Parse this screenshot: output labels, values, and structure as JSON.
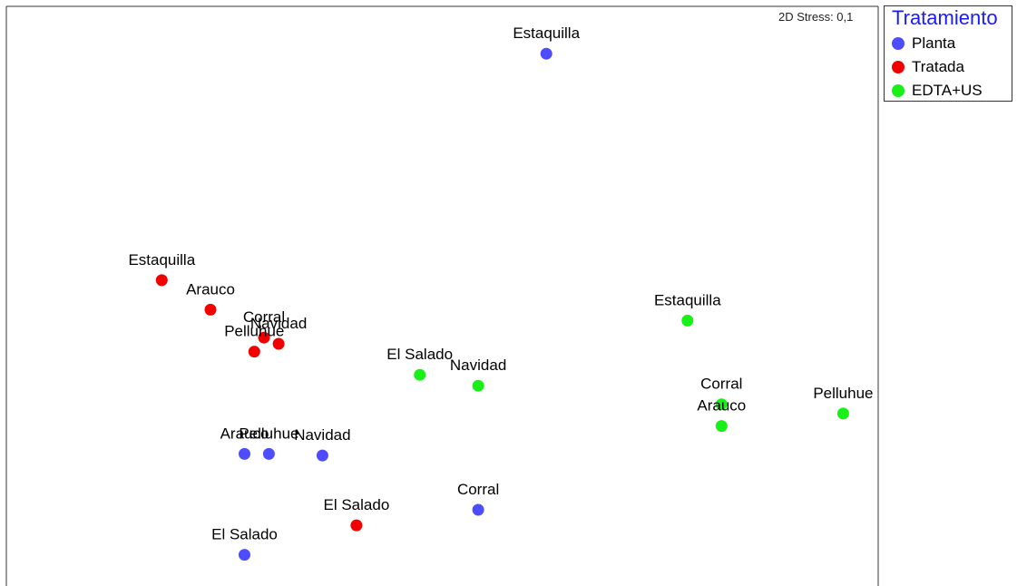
{
  "stress_label": "2D Stress: 0,1",
  "legend": {
    "title": "Tratamiento",
    "items": [
      {
        "label": "Planta",
        "color": "#4d4dff"
      },
      {
        "label": "Tratada",
        "color": "#f20000"
      },
      {
        "label": "EDTA+US",
        "color": "#18f018"
      }
    ]
  },
  "chart_data": {
    "type": "scatter",
    "title": "",
    "xlabel": "",
    "ylabel": "",
    "legend_position": "top-right outside",
    "series": [
      {
        "name": "Planta",
        "color": "#4d4dff",
        "points": [
          {
            "label": "Estaquilla",
            "x": 0.65,
            "y": 9.35
          },
          {
            "label": "Arauco",
            "x": -2.45,
            "y": -3.55
          },
          {
            "label": "Pelluhue",
            "x": -2.2,
            "y": -3.55
          },
          {
            "label": "Navidad",
            "x": -1.65,
            "y": -3.6
          },
          {
            "label": "Corral",
            "x": -0.05,
            "y": -5.35
          },
          {
            "label": "El Salado",
            "x": -2.45,
            "y": -6.8
          }
        ]
      },
      {
        "name": "Tratada",
        "color": "#f20000",
        "points": [
          {
            "label": "Estaquilla",
            "x": -3.3,
            "y": 2.05
          },
          {
            "label": "Arauco",
            "x": -2.8,
            "y": 1.1
          },
          {
            "label": "Corral",
            "x": -2.25,
            "y": 0.2
          },
          {
            "label": "Navidad",
            "x": -2.1,
            "y": 0.0
          },
          {
            "label": "Pelluhue",
            "x": -2.35,
            "y": -0.25
          },
          {
            "label": "El Salado",
            "x": -1.3,
            "y": -5.85
          }
        ]
      },
      {
        "name": "EDTA+US",
        "color": "#18f018",
        "points": [
          {
            "label": "Estaquilla",
            "x": 2.1,
            "y": 0.75
          },
          {
            "label": "El Salado",
            "x": -0.65,
            "y": -1.0
          },
          {
            "label": "Navidad",
            "x": -0.05,
            "y": -1.35
          },
          {
            "label": "Corral",
            "x": 2.45,
            "y": -1.95
          },
          {
            "label": "Arauco",
            "x": 2.45,
            "y": -2.65
          },
          {
            "label": "Pelluhue",
            "x": 3.7,
            "y": -2.25
          }
        ]
      }
    ]
  }
}
